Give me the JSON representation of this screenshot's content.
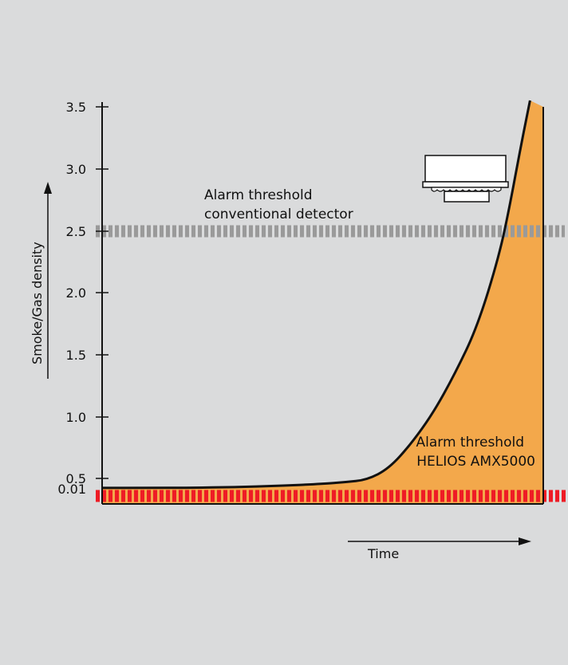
{
  "chart_data": {
    "type": "area",
    "ylabel": "Smoke/Gas density",
    "xlabel": "Time",
    "y_ticks": [
      {
        "value": 0.01,
        "label": "0.01"
      },
      {
        "value": 0.5,
        "label": "0.5"
      },
      {
        "value": 1.0,
        "label": "1.0"
      },
      {
        "value": 1.5,
        "label": "1.5"
      },
      {
        "value": 2.0,
        "label": "2.0"
      },
      {
        "value": 2.5,
        "label": "2.5"
      },
      {
        "value": 3.0,
        "label": "3.0"
      },
      {
        "value": 3.5,
        "label": "3.5"
      }
    ],
    "curve": {
      "x": [
        0,
        0.1,
        0.2,
        0.3,
        0.4,
        0.5,
        0.55,
        0.6,
        0.65,
        0.7,
        0.75,
        0.8,
        0.85,
        0.9,
        0.925,
        0.95,
        0.97
      ],
      "y": [
        0.05,
        0.05,
        0.06,
        0.09,
        0.15,
        0.24,
        0.32,
        0.43,
        0.58,
        0.78,
        1.03,
        1.35,
        1.72,
        2.3,
        2.72,
        3.2,
        3.55
      ]
    },
    "thresholds": [
      {
        "name": "Alarm threshold conventional detector",
        "lines": [
          "Alarm threshold",
          "conventional detector"
        ],
        "value": 2.5,
        "color": "#9a9a9a"
      },
      {
        "name": "Alarm threshold HELIOS AMX5000",
        "lines": [
          "Alarm threshold",
          "HELIOS AMX5000"
        ],
        "value": 0.3,
        "color": "#ee1c25"
      }
    ],
    "fill_color": "#f3a84b",
    "grid": false,
    "icon": "smoke-detector-icon"
  }
}
